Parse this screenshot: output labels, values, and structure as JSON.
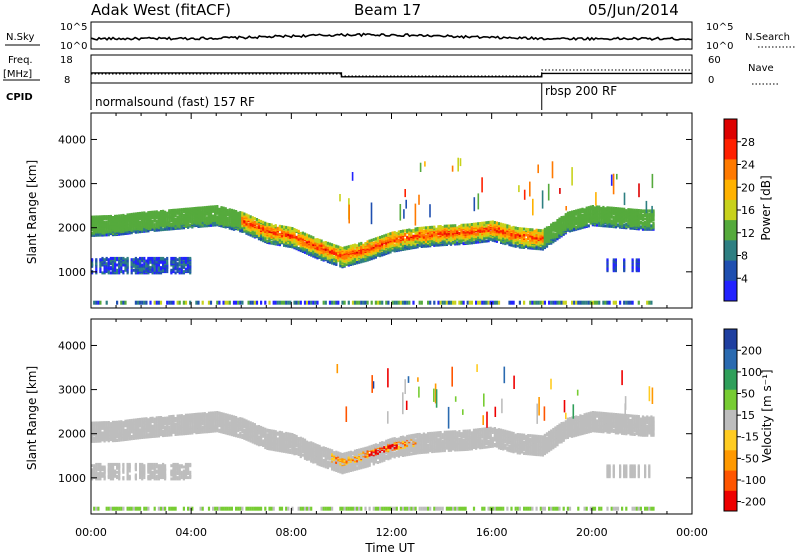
{
  "header": {
    "station": "Adak West (fitACF)",
    "beam": "Beam 17",
    "date": "05/Jun/2014"
  },
  "top_panels": {
    "nsky_label": "N.Sky",
    "nsearch_label": "N.Search",
    "nsky_ticks": [
      "10^5",
      "10^0"
    ],
    "nsearch_ticks": [
      "10^5",
      "10^0"
    ],
    "freq_label_1": "Freq.",
    "freq_label_2": "[MHz]",
    "freq_ticks": [
      "18",
      "8"
    ],
    "nave_label": "Nave",
    "nave_ticks": [
      "60",
      "0"
    ],
    "cpid_label": "CPID",
    "cpid_segments": [
      {
        "label": "normalsound (fast) 157 RF",
        "start_hour": 0,
        "end_hour": 18
      },
      {
        "label": "rbsp 200 RF",
        "start_hour": 18,
        "end_hour": 24
      }
    ],
    "freq_steps": [
      {
        "start_hour": 0,
        "end_hour": 10,
        "value": 11.6
      },
      {
        "start_hour": 10,
        "end_hour": 18,
        "value": 10.2
      },
      {
        "start_hour": 18,
        "end_hour": 24,
        "value": 11.4
      }
    ]
  },
  "chart_data": [
    {
      "type": "heatmap",
      "name": "power",
      "ylabel": "Slant Range [km]",
      "xlabel": "",
      "x_range_hours": [
        0,
        24
      ],
      "y_range_km": [
        180,
        4600
      ],
      "y_ticks": [
        "1000",
        "2000",
        "3000",
        "4000"
      ],
      "colorbar_label": "Power [dB]",
      "colorbar_ticks": [
        "4",
        "8",
        "12",
        "16",
        "20",
        "24",
        "28"
      ],
      "colorbar_range": [
        0,
        30
      ],
      "palette": [
        "#2222ff",
        "#1f4fb0",
        "#2e7f82",
        "#55aa3c",
        "#c8d21c",
        "#ffb200",
        "#ff7a00",
        "#ff2000",
        "#dd0000"
      ],
      "band_tracks_km": [
        {
          "t": 0,
          "r": 2060
        },
        {
          "t": 1,
          "r": 2080
        },
        {
          "t": 2,
          "r": 2150
        },
        {
          "t": 3,
          "r": 2200
        },
        {
          "t": 4,
          "r": 2250
        },
        {
          "t": 5,
          "r": 2300
        },
        {
          "t": 6,
          "r": 2150
        },
        {
          "t": 7,
          "r": 1900
        },
        {
          "t": 8,
          "r": 1800
        },
        {
          "t": 9,
          "r": 1550
        },
        {
          "t": 10,
          "r": 1350
        },
        {
          "t": 11,
          "r": 1500
        },
        {
          "t": 12,
          "r": 1700
        },
        {
          "t": 13,
          "r": 1800
        },
        {
          "t": 14,
          "r": 1850
        },
        {
          "t": 15,
          "r": 1880
        },
        {
          "t": 16,
          "r": 1950
        },
        {
          "t": 17,
          "r": 1800
        },
        {
          "t": 18,
          "r": 1750
        },
        {
          "t": 19,
          "r": 2150
        },
        {
          "t": 20,
          "r": 2300
        },
        {
          "t": 21,
          "r": 2250
        },
        {
          "t": 22,
          "r": 2200
        }
      ]
    },
    {
      "type": "heatmap",
      "name": "velocity",
      "ylabel": "Slant Range [km]",
      "xlabel": "Time UT",
      "x_range_hours": [
        0,
        24
      ],
      "x_ticks": [
        "00:00",
        "04:00",
        "08:00",
        "12:00",
        "16:00",
        "20:00",
        "00:00"
      ],
      "y_range_km": [
        180,
        4600
      ],
      "y_ticks": [
        "1000",
        "2000",
        "3000",
        "4000"
      ],
      "colorbar_label": "Velocity [m s⁻¹]",
      "colorbar_ticks": [
        "200",
        "100",
        "50",
        "15",
        "-15",
        "-50",
        "-100",
        "-200"
      ],
      "palette": [
        "#1f3fa0",
        "#2a6ab0",
        "#2f9f5a",
        "#77cc33",
        "#bdbdbd",
        "#ffcc22",
        "#ff9900",
        "#ff5500",
        "#ee0000"
      ]
    }
  ]
}
